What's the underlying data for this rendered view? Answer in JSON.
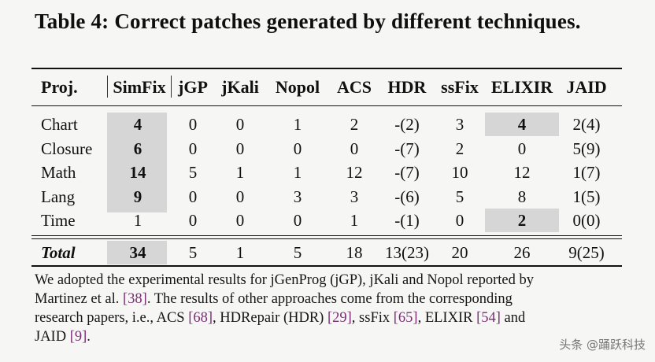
{
  "caption": "Table 4: Correct patches generated by different techniques.",
  "table": {
    "headers": [
      "Proj.",
      "SimFix",
      "jGP",
      "jKali",
      "Nopol",
      "ACS",
      "HDR",
      "ssFix",
      "ELIXIR",
      "JAID"
    ],
    "rows": [
      {
        "proj": "Chart",
        "values": [
          "4",
          "0",
          "0",
          "1",
          "2",
          "-(2)",
          "3",
          "4",
          "2(4)"
        ]
      },
      {
        "proj": "Closure",
        "values": [
          "6",
          "0",
          "0",
          "0",
          "0",
          "-(7)",
          "2",
          "0",
          "5(9)"
        ]
      },
      {
        "proj": "Math",
        "values": [
          "14",
          "5",
          "1",
          "1",
          "12",
          "-(7)",
          "10",
          "12",
          "1(7)"
        ]
      },
      {
        "proj": "Lang",
        "values": [
          "9",
          "0",
          "0",
          "3",
          "3",
          "-(6)",
          "5",
          "8",
          "1(5)"
        ]
      },
      {
        "proj": "Time",
        "values": [
          "1",
          "0",
          "0",
          "0",
          "1",
          "-(1)",
          "0",
          "2",
          "0(0)"
        ]
      }
    ],
    "total": {
      "label": "Total",
      "values": [
        "34",
        "5",
        "1",
        "5",
        "18",
        "13(23)",
        "20",
        "26",
        "9(25)"
      ]
    }
  },
  "footnote": {
    "line1": "We adopted the experimental results for jGenProg (jGP), jKali and Nopol reported by",
    "line2_a": "Martinez et al. ",
    "line2_ref": "[38]",
    "line2_b": ". The results of other approaches come from the corresponding",
    "line3_a": "research papers, i.e., ACS ",
    "line3_ref1": "[68]",
    "line3_b": ", HDRepair (HDR) ",
    "line3_ref2": "[29]",
    "line3_c": ", ssFix ",
    "line3_ref3": "[65]",
    "line3_d": ", ELIXIR ",
    "line3_ref4": "[54]",
    "line3_e": " and",
    "line4_a": "JAID ",
    "line4_ref": "[9]",
    "line4_b": "."
  },
  "watermark": "头条 @踊跃科技"
}
